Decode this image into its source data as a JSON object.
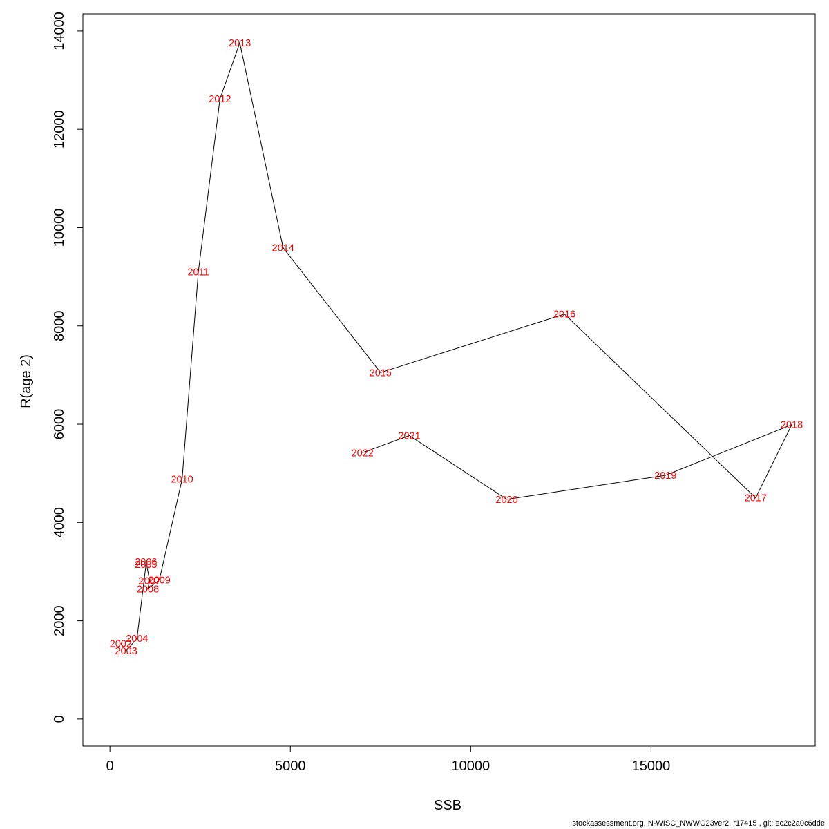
{
  "chart_data": {
    "type": "line",
    "title": "",
    "xlabel": "SSB",
    "ylabel": "R(age 2)",
    "xlim": [
      -750,
      19550
    ],
    "ylim": [
      -550,
      14350
    ],
    "x_ticks": [
      0,
      5000,
      10000,
      15000
    ],
    "y_ticks": [
      0,
      2000,
      4000,
      6000,
      8000,
      10000,
      12000,
      14000
    ],
    "grid": false,
    "legend": "none",
    "colors": {
      "line": "#000000",
      "labels": "#ff0000",
      "axes": "#000000"
    },
    "points": [
      {
        "label": "2002",
        "x": 300,
        "y": 1540
      },
      {
        "label": "2003",
        "x": 450,
        "y": 1390
      },
      {
        "label": "2004",
        "x": 750,
        "y": 1640
      },
      {
        "label": "2005",
        "x": 1000,
        "y": 3150
      },
      {
        "label": "2006",
        "x": 1000,
        "y": 3200
      },
      {
        "label": "2007",
        "x": 1100,
        "y": 2820
      },
      {
        "label": "2008",
        "x": 1050,
        "y": 2650
      },
      {
        "label": "2009",
        "x": 1370,
        "y": 2830
      },
      {
        "label": "2010",
        "x": 2000,
        "y": 4880
      },
      {
        "label": "2011",
        "x": 2450,
        "y": 9100
      },
      {
        "label": "2012",
        "x": 3050,
        "y": 12620
      },
      {
        "label": "2013",
        "x": 3600,
        "y": 13760
      },
      {
        "label": "2014",
        "x": 4800,
        "y": 9590
      },
      {
        "label": "2015",
        "x": 7500,
        "y": 7050
      },
      {
        "label": "2016",
        "x": 12600,
        "y": 8240
      },
      {
        "label": "2017",
        "x": 17900,
        "y": 4500
      },
      {
        "label": "2018",
        "x": 18900,
        "y": 5990
      },
      {
        "label": "2019",
        "x": 15400,
        "y": 4960
      },
      {
        "label": "2020",
        "x": 11000,
        "y": 4470
      },
      {
        "label": "2021",
        "x": 8300,
        "y": 5770
      },
      {
        "label": "2022",
        "x": 7000,
        "y": 5420
      }
    ]
  },
  "footer": "stockassessment.org, N-WISC_NWWG23ver2, r17415 , git: ec2c2a0c6dde"
}
